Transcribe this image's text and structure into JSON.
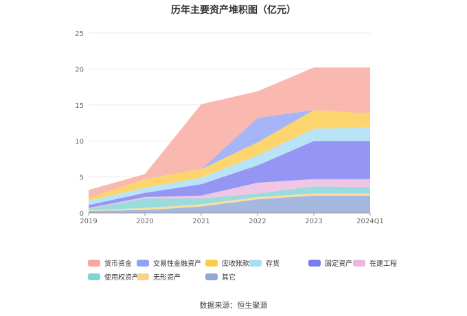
{
  "chart_data": {
    "type": "area",
    "stacked": true,
    "title": "历年主要资产堆积图（亿元）",
    "categories": [
      "2019",
      "2020",
      "2021",
      "2022",
      "2023",
      "2024Q1"
    ],
    "yticks": [
      "0",
      "5",
      "10",
      "15",
      "20",
      "25"
    ],
    "ylim": [
      0,
      25
    ],
    "grid": true,
    "legend_position": "bottom",
    "series": [
      {
        "name": "其它",
        "color": "#8FA8D8",
        "values": [
          0.3,
          0.4,
          0.9,
          1.9,
          2.4,
          2.4
        ]
      },
      {
        "name": "无形资产",
        "color": "#FAD38A",
        "values": [
          0.1,
          0.3,
          0.3,
          0.3,
          0.3,
          0.3
        ]
      },
      {
        "name": "使用权资产",
        "color": "#7FD3D3",
        "values": [
          0.2,
          1.3,
          0.8,
          0.5,
          1.0,
          0.9
        ]
      },
      {
        "name": "在建工程",
        "color": "#EBB8DC",
        "values": [
          0.1,
          0.2,
          0.4,
          1.5,
          1.0,
          1.1
        ]
      },
      {
        "name": "固定资产",
        "color": "#7B7CF0",
        "values": [
          0.4,
          0.6,
          1.6,
          2.4,
          5.3,
          5.3
        ]
      },
      {
        "name": "存货",
        "color": "#A8DDF5",
        "values": [
          0.6,
          0.7,
          0.9,
          1.4,
          1.7,
          1.9
        ]
      },
      {
        "name": "应收账款",
        "color": "#FCCB4A",
        "values": [
          0.4,
          1.2,
          1.2,
          1.8,
          2.6,
          1.9
        ]
      },
      {
        "name": "交易性金融资产",
        "color": "#8FA3F5",
        "values": [
          0,
          0,
          0,
          3.4,
          0,
          0
        ]
      },
      {
        "name": "货币资金",
        "color": "#F8A79E",
        "values": [
          1.1,
          0.7,
          9.0,
          3.7,
          5.9,
          6.4
        ]
      }
    ],
    "legend_order": [
      "货币资金",
      "交易性金融资产",
      "应收账款",
      "存货",
      "固定资产",
      "在建工程",
      "使用权资产",
      "无形资产",
      "其它"
    ]
  },
  "source": "数据来源：恒生聚源"
}
